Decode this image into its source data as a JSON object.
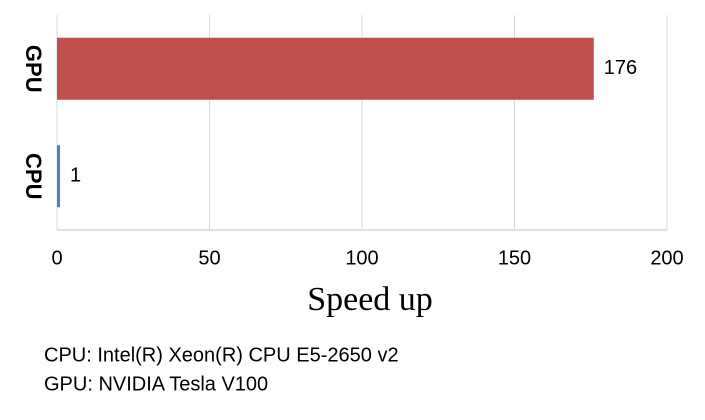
{
  "chart_data": {
    "type": "bar",
    "orientation": "horizontal",
    "categories": [
      "GPU",
      "CPU"
    ],
    "values": [
      176,
      1
    ],
    "colors": [
      "#c0504d",
      "#4f81bd"
    ],
    "xlabel": "Speed up",
    "xlim": [
      0,
      200
    ],
    "xticks": [
      0,
      50,
      100,
      150,
      200
    ],
    "grid": true,
    "notes": [
      "CPU: Intel(R) Xeon(R) CPU E5-2650 v2",
      "GPU: NVIDIA Tesla V100"
    ]
  }
}
